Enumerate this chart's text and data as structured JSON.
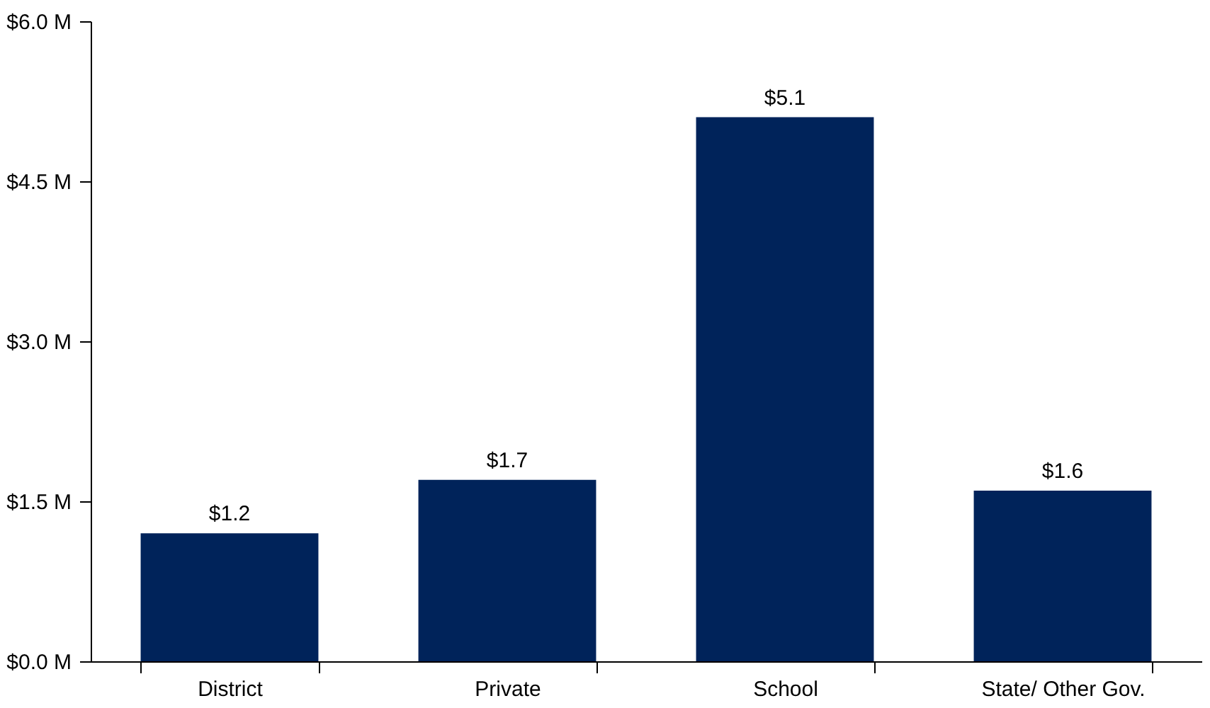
{
  "chart_data": {
    "type": "bar",
    "categories": [
      "District",
      "Private",
      "School",
      "State/ Other Gov."
    ],
    "values": [
      1.2,
      1.7,
      5.1,
      1.6
    ],
    "value_labels": [
      "$1.2",
      "$1.7",
      "$5.1",
      "$1.6"
    ],
    "color": "#00235a",
    "ylim": [
      0,
      6
    ],
    "yticks": [
      {
        "value": 0,
        "label": "$0.0 M"
      },
      {
        "value": 1.5,
        "label": "$1.5 M"
      },
      {
        "value": 3,
        "label": "$3.0 M"
      },
      {
        "value": 4.5,
        "label": "$4.5 M"
      },
      {
        "value": 6,
        "label": "$6.0 M"
      }
    ],
    "grid": false
  }
}
